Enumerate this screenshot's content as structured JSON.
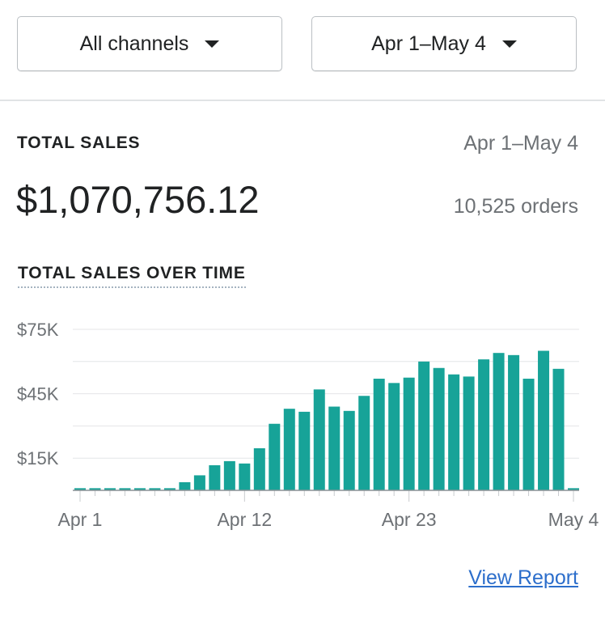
{
  "filters": {
    "channel": "All channels",
    "date_range": "Apr 1–May 4"
  },
  "summary": {
    "title": "TOTAL SALES",
    "date_range": "Apr 1–May 4",
    "total": "$1,070,756.12",
    "orders": "10,525 orders"
  },
  "chart_data": {
    "type": "bar",
    "title": "TOTAL SALES OVER TIME",
    "color": "#17a398",
    "categories": [
      "Apr 1",
      null,
      null,
      null,
      null,
      null,
      null,
      null,
      null,
      null,
      null,
      "Apr 12",
      null,
      null,
      null,
      null,
      null,
      null,
      null,
      null,
      null,
      null,
      "Apr 23",
      null,
      null,
      null,
      null,
      null,
      null,
      null,
      null,
      null,
      null,
      "May 4"
    ],
    "values": [
      1000,
      1000,
      1000,
      1000,
      1000,
      1000,
      1000,
      3800,
      7000,
      11700,
      13600,
      12500,
      19600,
      31000,
      38000,
      36600,
      47000,
      39000,
      37000,
      44000,
      52000,
      50000,
      52500,
      60000,
      57000,
      54000,
      53000,
      61000,
      64000,
      63000,
      52000,
      65000,
      56600,
      1000
    ],
    "ylim": [
      0,
      75000
    ],
    "yticks": [
      {
        "value": 15000,
        "label": "$15K"
      },
      {
        "value": 45000,
        "label": "$45K"
      },
      {
        "value": 75000,
        "label": "$75K"
      }
    ],
    "minor_yticks": [
      0,
      30000,
      60000
    ],
    "grid": true
  },
  "link": "View Report"
}
